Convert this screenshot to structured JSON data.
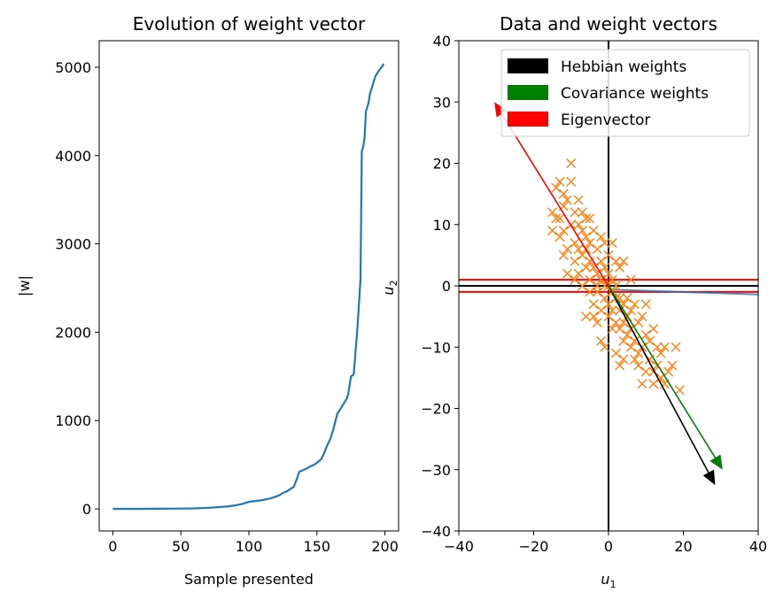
{
  "chart_data": [
    {
      "type": "line",
      "title": "Evolution of weight vector",
      "xlabel": "Sample presented",
      "ylabel": "|w|",
      "xlim": [
        -10,
        210
      ],
      "ylim": [
        -250,
        5300
      ],
      "xticks": [
        0,
        50,
        100,
        150,
        200
      ],
      "xtick_labels": [
        "0",
        "50",
        "100",
        "150",
        "200"
      ],
      "yticks": [
        0,
        1000,
        2000,
        3000,
        4000,
        5000
      ],
      "ytick_labels": [
        "0",
        "1000",
        "2000",
        "3000",
        "4000",
        "5000"
      ],
      "grid": false,
      "color": "#1f77b4",
      "series": [
        {
          "x": [
            0,
            10,
            20,
            30,
            40,
            50,
            60,
            65,
            70,
            75,
            80,
            85,
            90,
            95,
            98,
            100,
            102,
            105,
            110,
            113,
            115,
            118,
            120,
            123,
            125,
            128,
            130,
            133,
            135,
            137,
            140,
            143,
            145,
            148,
            150,
            153,
            155,
            157,
            160,
            162,
            163,
            165,
            168,
            170,
            172,
            173,
            175,
            177,
            178,
            180,
            182,
            183,
            184,
            185,
            186,
            187,
            188,
            189,
            190,
            191,
            192,
            193,
            194,
            195,
            196,
            197,
            198,
            199
          ],
          "y": [
            0,
            0,
            0,
            1,
            2,
            3,
            5,
            8,
            12,
            16,
            22,
            30,
            40,
            55,
            70,
            80,
            85,
            90,
            100,
            110,
            115,
            130,
            140,
            160,
            180,
            200,
            220,
            250,
            330,
            420,
            440,
            460,
            480,
            500,
            520,
            560,
            620,
            700,
            800,
            900,
            960,
            1080,
            1150,
            1200,
            1250,
            1300,
            1500,
            1520,
            1700,
            2100,
            2600,
            4050,
            4100,
            4200,
            4500,
            4550,
            4600,
            4700,
            4750,
            4800,
            4850,
            4900,
            4920,
            4950,
            4970,
            4990,
            5010,
            5040
          ]
        }
      ]
    },
    {
      "type": "scatter",
      "title": "Data and weight vectors",
      "xlabel": "u1",
      "ylabel": "u2",
      "xlim": [
        -40,
        40
      ],
      "ylim": [
        -40,
        40
      ],
      "xticks": [
        -40,
        -20,
        0,
        20,
        40
      ],
      "xtick_labels": [
        "−40",
        "−20",
        "0",
        "20",
        "40"
      ],
      "yticks": [
        -40,
        -30,
        -20,
        -10,
        0,
        10,
        20,
        30,
        40
      ],
      "ytick_labels": [
        "−40",
        "−30",
        "−20",
        "−10",
        "0",
        "10",
        "20",
        "30",
        "40"
      ],
      "grid": false,
      "legend_position": "top-right",
      "legend": [
        {
          "label": "Hebbian weights",
          "color": "#000000"
        },
        {
          "label": "Covariance weights",
          "color": "#008000"
        },
        {
          "label": "Eigenvector",
          "color": "#ff0000"
        }
      ],
      "points_color": "#ff7f0e",
      "points": [
        [
          -14,
          16
        ],
        [
          -13,
          17
        ],
        [
          -12,
          15
        ],
        [
          -10,
          20
        ],
        [
          -15,
          12
        ],
        [
          -11,
          14
        ],
        [
          -9,
          12
        ],
        [
          -8,
          10
        ],
        [
          -12,
          9
        ],
        [
          -10,
          10
        ],
        [
          -7,
          12
        ],
        [
          -6,
          11
        ],
        [
          -9,
          7
        ],
        [
          -8,
          6
        ],
        [
          -13,
          8
        ],
        [
          -6,
          8
        ],
        [
          -5,
          7
        ],
        [
          -4,
          9
        ],
        [
          -7,
          5
        ],
        [
          -5,
          4
        ],
        [
          -3,
          6
        ],
        [
          -2,
          8
        ],
        [
          -1,
          7
        ],
        [
          -4,
          3
        ],
        [
          -3,
          2
        ],
        [
          -2,
          4
        ],
        [
          -1,
          3
        ],
        [
          0,
          5
        ],
        [
          -6,
          3
        ],
        [
          -8,
          2
        ],
        [
          -5,
          1
        ],
        [
          -3,
          0
        ],
        [
          -2,
          1
        ],
        [
          -1,
          0
        ],
        [
          0,
          2
        ],
        [
          1,
          1
        ],
        [
          0,
          0
        ],
        [
          1,
          -1
        ],
        [
          2,
          0
        ],
        [
          3,
          -2
        ],
        [
          -1,
          -2
        ],
        [
          0,
          -3
        ],
        [
          1,
          -4
        ],
        [
          2,
          -2
        ],
        [
          3,
          -4
        ],
        [
          4,
          -3
        ],
        [
          5,
          -5
        ],
        [
          6,
          -4
        ],
        [
          2,
          -6
        ],
        [
          3,
          -7
        ],
        [
          4,
          -6
        ],
        [
          5,
          -8
        ],
        [
          6,
          -7
        ],
        [
          7,
          -9
        ],
        [
          8,
          -6
        ],
        [
          4,
          -9
        ],
        [
          9,
          -10
        ],
        [
          10,
          -8
        ],
        [
          8,
          -11
        ],
        [
          11,
          -12
        ],
        [
          7,
          -12
        ],
        [
          12,
          -14
        ],
        [
          13,
          -13
        ],
        [
          10,
          -14
        ],
        [
          14,
          -15
        ],
        [
          12,
          -16
        ],
        [
          15,
          -16
        ],
        [
          16,
          -14
        ],
        [
          17,
          -13
        ],
        [
          19,
          -17
        ],
        [
          13,
          -10
        ],
        [
          11,
          -9
        ],
        [
          9,
          -5
        ],
        [
          7,
          -3
        ],
        [
          -4,
          -5
        ],
        [
          -6,
          -5
        ],
        [
          -2,
          -9
        ],
        [
          -1,
          -10
        ],
        [
          2,
          -11
        ],
        [
          -5,
          -1
        ],
        [
          -7,
          0
        ],
        [
          -9,
          4
        ],
        [
          -11,
          6
        ],
        [
          -12,
          5
        ],
        [
          -14,
          11
        ],
        [
          -15,
          9
        ],
        [
          -10,
          17
        ],
        [
          -13,
          11
        ],
        [
          5,
          -2
        ],
        [
          6,
          1
        ],
        [
          2,
          4
        ],
        [
          3,
          3
        ],
        [
          4,
          4
        ],
        [
          -3,
          -1
        ],
        [
          1,
          -7
        ],
        [
          8,
          -13
        ],
        [
          10,
          -3
        ],
        [
          -8,
          14
        ],
        [
          -4,
          -3
        ],
        [
          18,
          -10
        ],
        [
          -11,
          2
        ],
        [
          -5,
          11
        ],
        [
          15,
          -10
        ],
        [
          0,
          -5
        ],
        [
          6,
          -10
        ],
        [
          1,
          7
        ],
        [
          -2,
          -4
        ],
        [
          4,
          -12
        ],
        [
          -6,
          6
        ],
        [
          12,
          -7
        ],
        [
          -12,
          13
        ],
        [
          -7,
          9
        ],
        [
          3,
          -13
        ],
        [
          -3,
          -6
        ],
        [
          9,
          -16
        ],
        [
          -9,
          1
        ],
        [
          14,
          -11
        ]
      ],
      "vectors": [
        {
          "name": "Hebbian weights",
          "from": [
            0,
            0
          ],
          "to": [
            28.5,
            -32.5
          ],
          "color": "#000000"
        },
        {
          "name": "Covariance weights",
          "from": [
            0,
            0
          ],
          "to": [
            30.5,
            -30
          ],
          "color": "#008000"
        },
        {
          "name": "Eigenvector",
          "from": [
            0,
            0
          ],
          "to": [
            -30.5,
            30
          ],
          "color": "#ff0000"
        }
      ],
      "reference_lines": [
        {
          "orientation": "horizontal",
          "y": 0,
          "color": "#000000"
        },
        {
          "orientation": "vertical",
          "x": 0,
          "color": "#000000"
        },
        {
          "orientation": "horizontal",
          "y": 1,
          "color": "#ff0000"
        },
        {
          "orientation": "horizontal",
          "y": -1,
          "color": "#ff0000"
        }
      ]
    }
  ]
}
